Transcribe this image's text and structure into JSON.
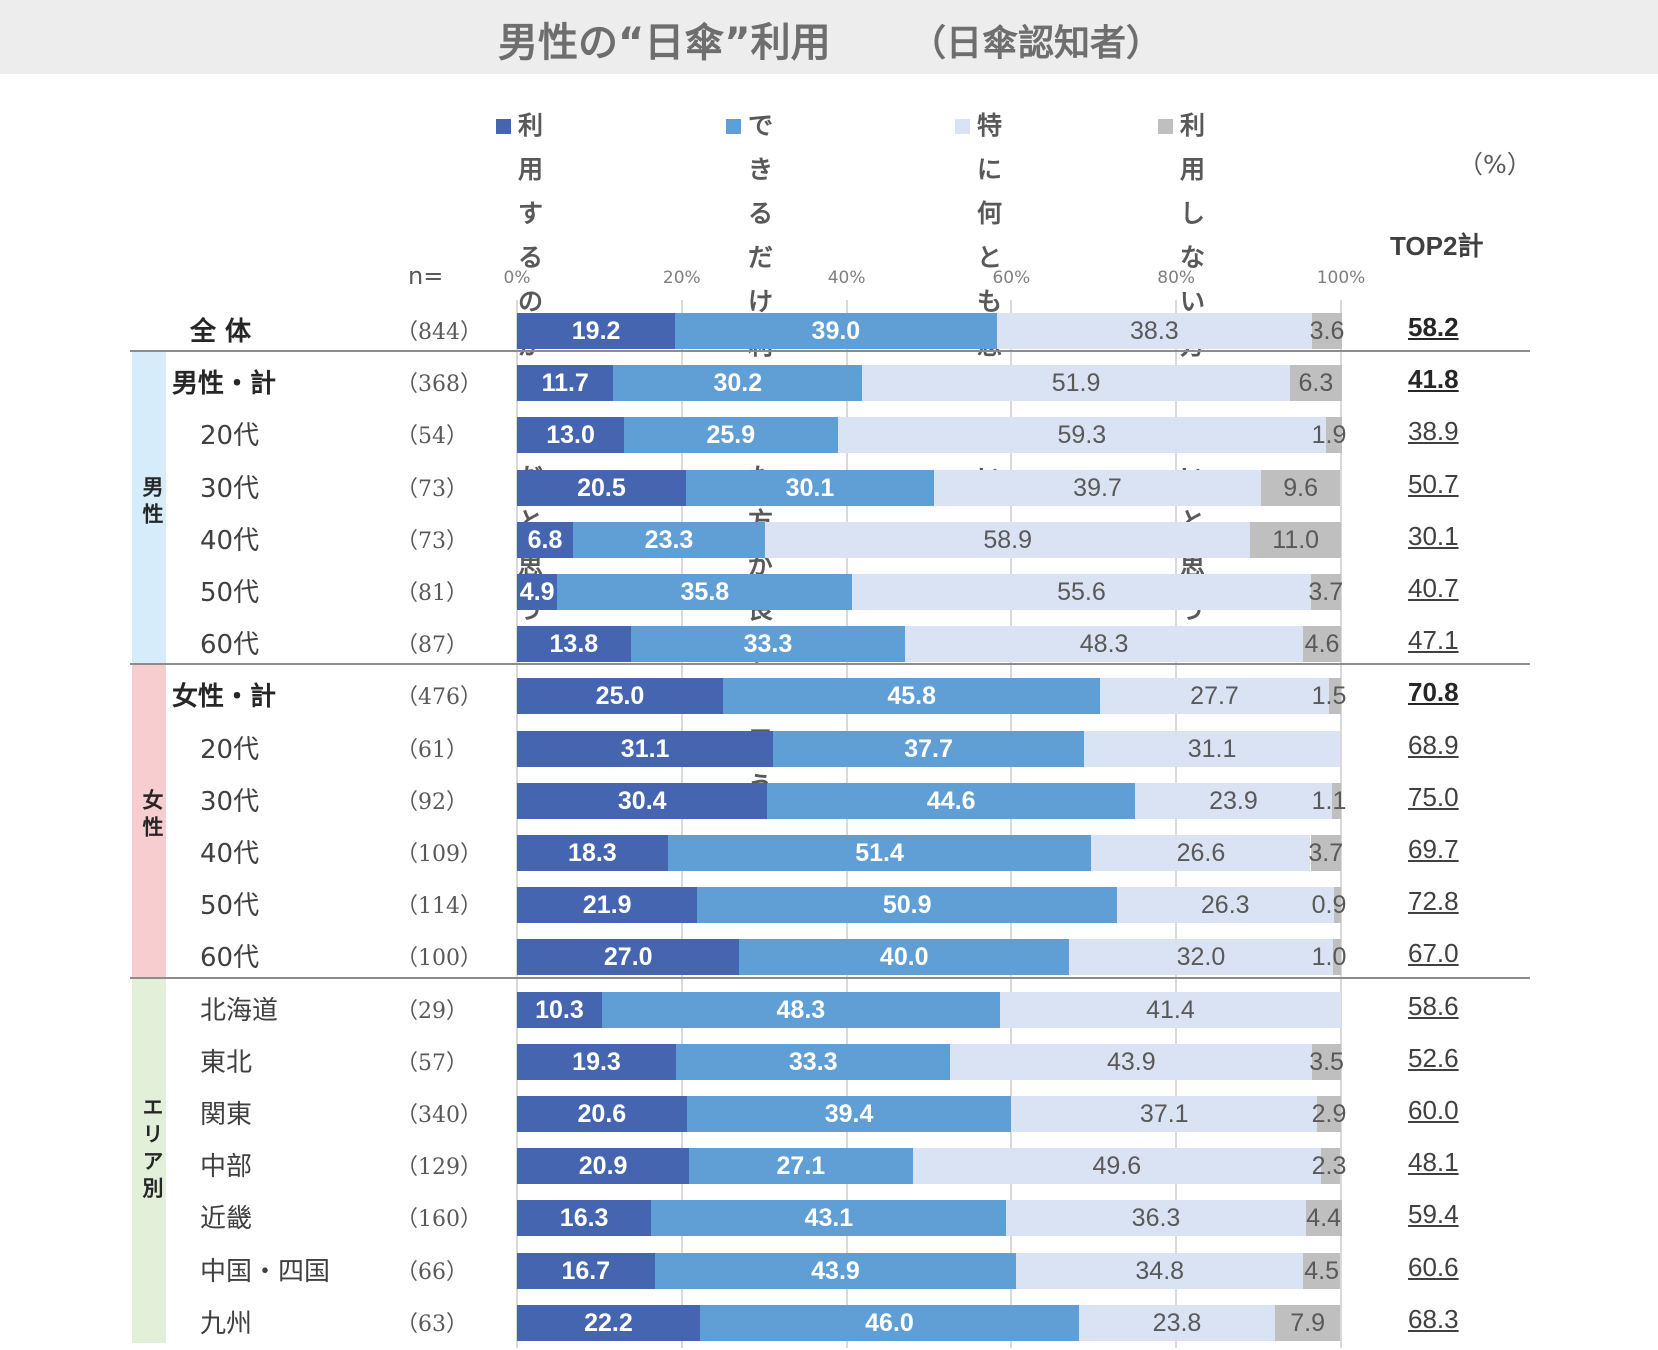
{
  "title": "男性の“日傘”利用",
  "subtitle": "（日傘認知者）",
  "unit_label": "（%）",
  "top2_label": "TOP2計",
  "n_label": "n=",
  "colors": {
    "strong_agree": "#4565b0",
    "agree": "#5f9fd6",
    "neutral": "#dae3f3",
    "disagree": "#bfbfbf",
    "male_band": "#d6ecfb",
    "female_band": "#f8cdcf",
    "area_band": "#e2f0d9"
  },
  "legend": [
    {
      "label": "利用するのが\n当然だと思う"
    },
    {
      "label": "できるだけ\n利用した方が\n良いと思う"
    },
    {
      "label": "特に何とも\n思わない"
    },
    {
      "label": "利用しない方が\n良いと思う"
    }
  ],
  "groups": [
    {
      "label": "男性"
    },
    {
      "label": "女性"
    },
    {
      "label": "エリア別"
    }
  ],
  "chart_data": {
    "type": "bar",
    "orientation": "horizontal",
    "stacked": true,
    "xlim": [
      0,
      100
    ],
    "xticks": [
      "0%",
      "20%",
      "40%",
      "60%",
      "80%",
      "100%"
    ],
    "grid": true,
    "legend_position": "top",
    "series_names": [
      "利用するのが当然だと思う",
      "できるだけ利用した方が良いと思う",
      "特に何とも思わない",
      "利用しない方が良いと思う"
    ],
    "rows": [
      {
        "label": "全 体",
        "n": "（844）",
        "values": [
          19.2,
          39.0,
          38.3,
          3.6
        ],
        "top2": "58.2"
      },
      {
        "label": "男性・計",
        "n": "（368）",
        "values": [
          11.7,
          30.2,
          51.9,
          6.3
        ],
        "top2": "41.8"
      },
      {
        "label": "20代",
        "n": "（54）",
        "values": [
          13.0,
          25.9,
          59.3,
          1.9
        ],
        "top2": "38.9"
      },
      {
        "label": "30代",
        "n": "（73）",
        "values": [
          20.5,
          30.1,
          39.7,
          9.6
        ],
        "top2": "50.7"
      },
      {
        "label": "40代",
        "n": "（73）",
        "values": [
          6.8,
          23.3,
          58.9,
          11.0
        ],
        "top2": "30.1"
      },
      {
        "label": "50代",
        "n": "（81）",
        "values": [
          4.9,
          35.8,
          55.6,
          3.7
        ],
        "top2": "40.7"
      },
      {
        "label": "60代",
        "n": "（87）",
        "values": [
          13.8,
          33.3,
          48.3,
          4.6
        ],
        "top2": "47.1"
      },
      {
        "label": "女性・計",
        "n": "（476）",
        "values": [
          25.0,
          45.8,
          27.7,
          1.5
        ],
        "top2": "70.8"
      },
      {
        "label": "20代",
        "n": "（61）",
        "values": [
          31.1,
          37.7,
          31.1,
          null
        ],
        "top2": "68.9"
      },
      {
        "label": "30代",
        "n": "（92）",
        "values": [
          30.4,
          44.6,
          23.9,
          1.1
        ],
        "top2": "75.0"
      },
      {
        "label": "40代",
        "n": "（109）",
        "values": [
          18.3,
          51.4,
          26.6,
          3.7
        ],
        "top2": "69.7"
      },
      {
        "label": "50代",
        "n": "（114）",
        "values": [
          21.9,
          50.9,
          26.3,
          0.9
        ],
        "top2": "72.8"
      },
      {
        "label": "60代",
        "n": "（100）",
        "values": [
          27.0,
          40.0,
          32.0,
          1.0
        ],
        "top2": "67.0"
      },
      {
        "label": "北海道",
        "n": "（29）",
        "values": [
          10.3,
          48.3,
          41.4,
          null
        ],
        "top2": "58.6"
      },
      {
        "label": "東北",
        "n": "（57）",
        "values": [
          19.3,
          33.3,
          43.9,
          3.5
        ],
        "top2": "52.6"
      },
      {
        "label": "関東",
        "n": "（340）",
        "values": [
          20.6,
          39.4,
          37.1,
          2.9
        ],
        "top2": "60.0"
      },
      {
        "label": "中部",
        "n": "（129）",
        "values": [
          20.9,
          27.1,
          49.6,
          2.3
        ],
        "top2": "48.1"
      },
      {
        "label": "近畿",
        "n": "（160）",
        "values": [
          16.3,
          43.1,
          36.3,
          4.4
        ],
        "top2": "59.4"
      },
      {
        "label": "中国・四国",
        "n": "（66）",
        "values": [
          16.7,
          43.9,
          34.8,
          4.5
        ],
        "top2": "60.6"
      },
      {
        "label": "九州",
        "n": "（63）",
        "values": [
          22.2,
          46.0,
          23.8,
          7.9
        ],
        "top2": "68.3"
      }
    ]
  }
}
